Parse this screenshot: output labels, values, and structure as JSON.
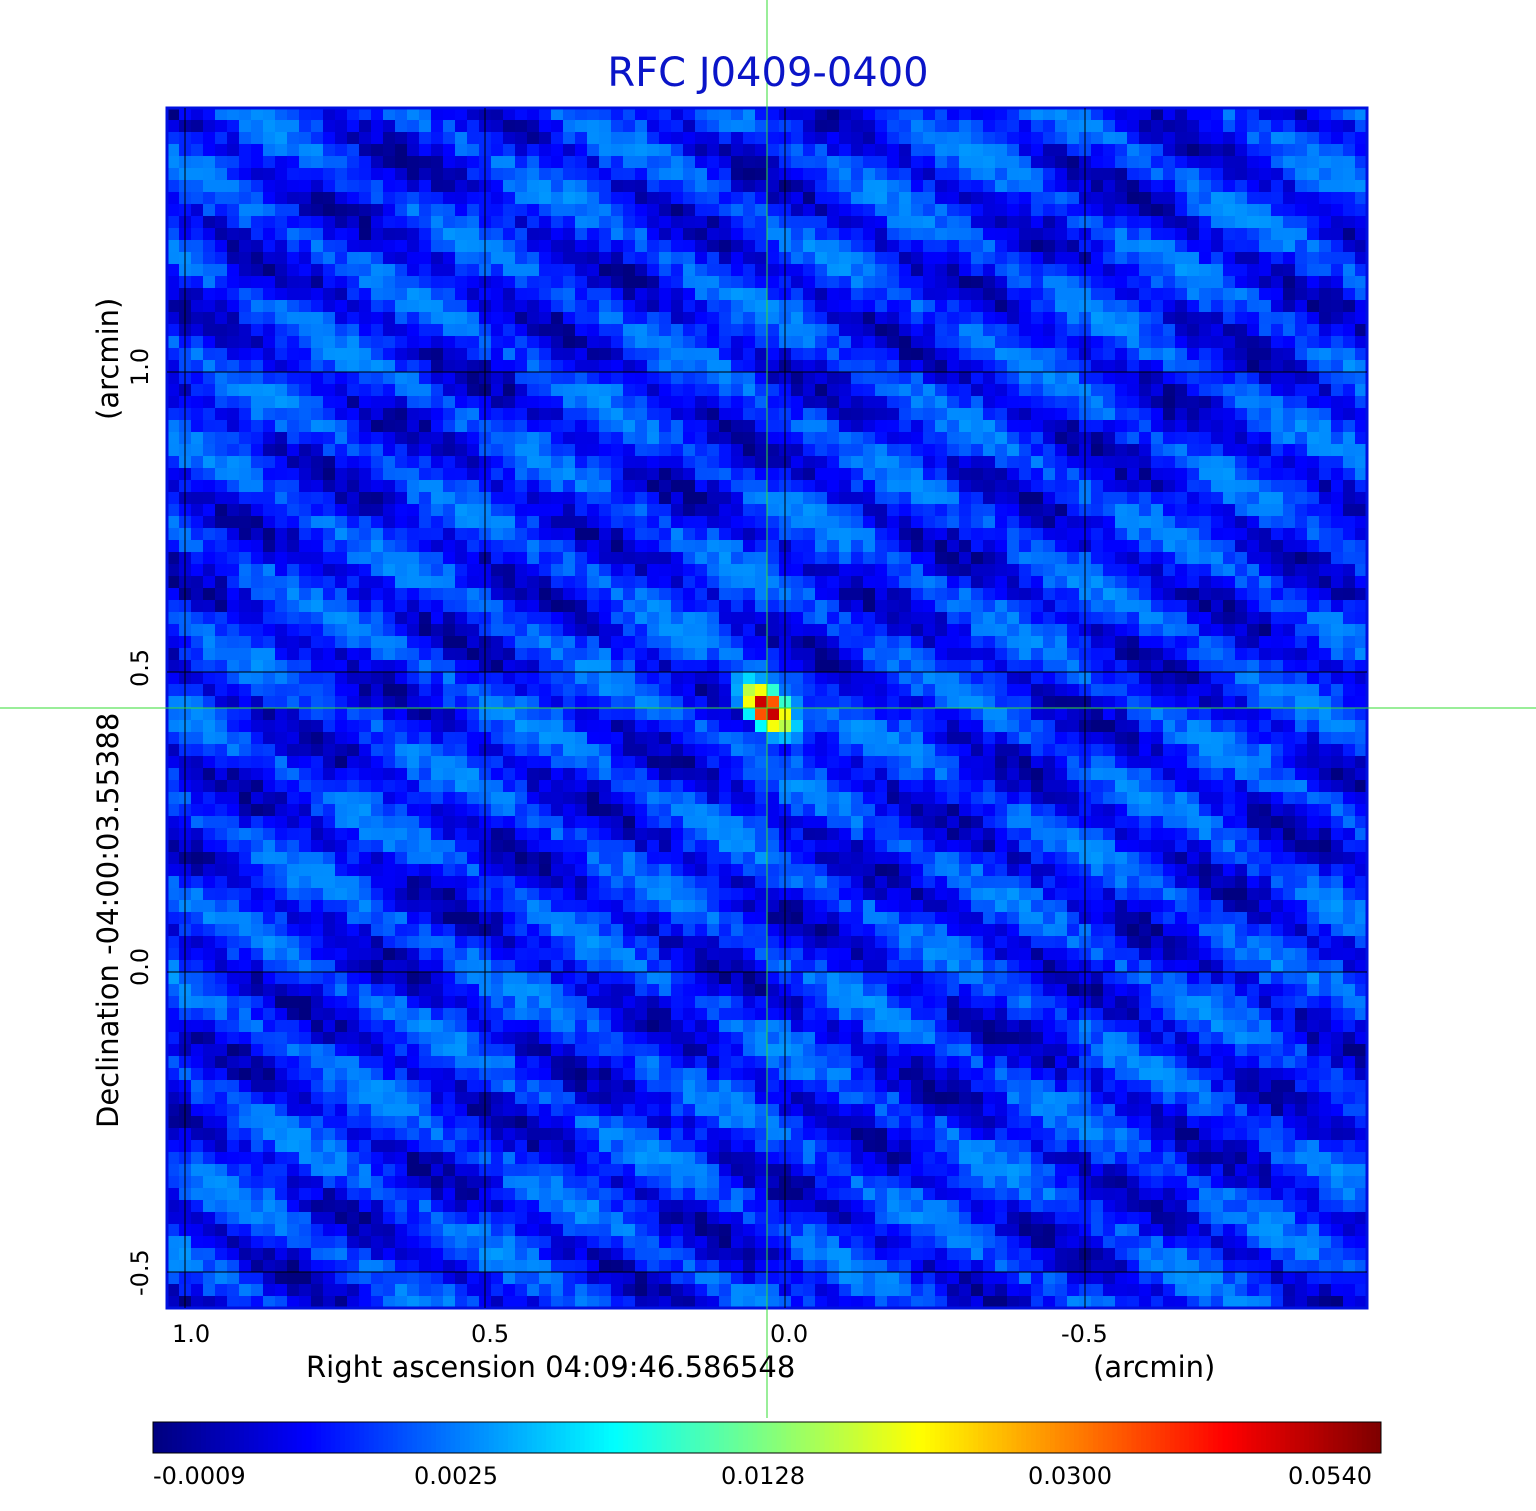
{
  "chart_data": {
    "type": "heatmap",
    "title": "RFC J0409-0400",
    "xlabel": "Right ascension  04:09:46.586548",
    "xlabel_unit": "(arcmin)",
    "ylabel": "Declination  -04:00:03.55388",
    "ylabel_unit": "(arcmin)",
    "x_ticks": [
      "1.0",
      "0.5",
      "0.0",
      "-0.5"
    ],
    "y_ticks": [
      "1.0",
      "0.5",
      "0.0",
      "-0.5"
    ],
    "x_range_arcmin": [
      1.03,
      -0.97
    ],
    "y_range_arcmin": [
      -0.56,
      1.44
    ],
    "grid": true,
    "colormap": "jet",
    "colorbar_ticks": [
      "-0.0009",
      "0.0025",
      "0.0128",
      "0.0300",
      "0.0540"
    ],
    "colorbar_range": [
      -0.0009,
      0.054
    ],
    "peak": {
      "x_arcmin": 0.03,
      "y_arcmin": 0.44,
      "value": 0.054
    },
    "crosshair": {
      "x_arcmin": 0.03,
      "y_arcmin": 0.44,
      "color": "#33dd33"
    },
    "background_level": 0.0012
  }
}
